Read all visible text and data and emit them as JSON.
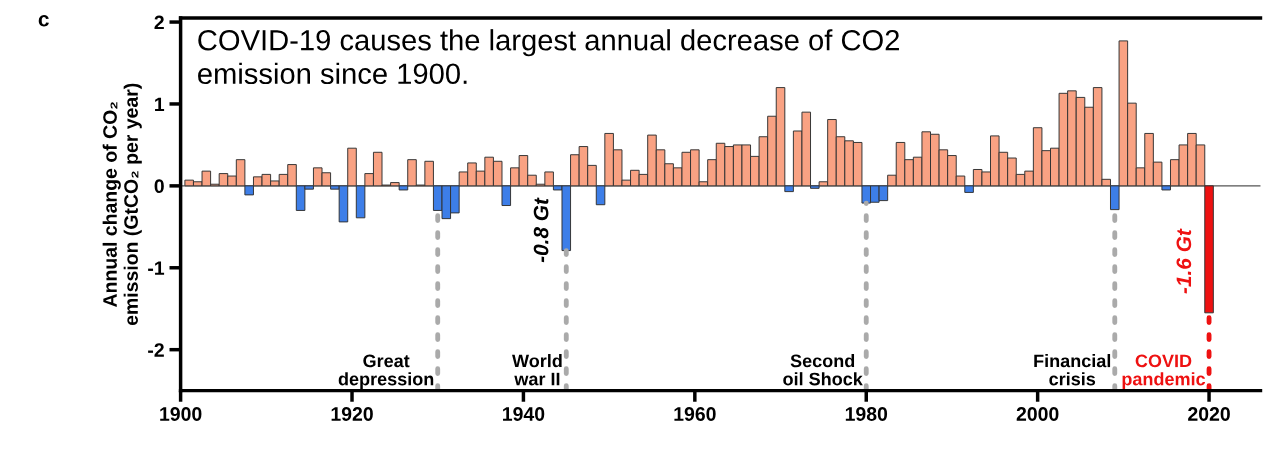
{
  "chart_data": {
    "type": "bar",
    "ylabel": "Annual change of CO₂\nemission (GtCO₂ per year)",
    "annotations": [
      "c",
      "COVID-19 causes the largest annual decrease of CO2\nemission since 1900.",
      {
        "text": "-0.8 Gt",
        "x": 1945,
        "y": -0.79
      },
      {
        "text": "-1.6 Gt",
        "x": 2020,
        "y": -1.55
      }
    ],
    "x": [
      1901,
      1902,
      1903,
      1904,
      1905,
      1906,
      1907,
      1908,
      1909,
      1910,
      1911,
      1912,
      1913,
      1914,
      1915,
      1916,
      1917,
      1918,
      1919,
      1920,
      1921,
      1922,
      1923,
      1924,
      1925,
      1926,
      1927,
      1928,
      1929,
      1930,
      1931,
      1932,
      1933,
      1934,
      1935,
      1936,
      1937,
      1938,
      1939,
      1940,
      1941,
      1942,
      1943,
      1944,
      1945,
      1946,
      1947,
      1948,
      1949,
      1950,
      1951,
      1952,
      1953,
      1954,
      1955,
      1956,
      1957,
      1958,
      1959,
      1960,
      1961,
      1962,
      1963,
      1964,
      1965,
      1966,
      1967,
      1968,
      1969,
      1970,
      1971,
      1972,
      1973,
      1974,
      1975,
      1976,
      1977,
      1978,
      1979,
      1980,
      1981,
      1982,
      1983,
      1984,
      1985,
      1986,
      1987,
      1988,
      1989,
      1990,
      1991,
      1992,
      1993,
      1994,
      1995,
      1996,
      1997,
      1998,
      1999,
      2000,
      2001,
      2002,
      2003,
      2004,
      2005,
      2006,
      2007,
      2008,
      2009,
      2010,
      2011,
      2012,
      2013,
      2014,
      2015,
      2016,
      2017,
      2018,
      2019,
      2020
    ],
    "values": [
      0.07,
      0.05,
      0.18,
      0.02,
      0.15,
      0.12,
      0.32,
      -0.11,
      0.11,
      0.14,
      0.06,
      0.14,
      0.26,
      -0.3,
      -0.04,
      0.22,
      0.16,
      -0.04,
      -0.44,
      0.46,
      -0.39,
      0.15,
      0.41,
      0.01,
      0.04,
      -0.05,
      0.32,
      0.01,
      0.3,
      -0.3,
      -0.4,
      -0.33,
      0.17,
      0.28,
      0.18,
      0.35,
      0.3,
      -0.24,
      0.22,
      0.37,
      0.13,
      0.02,
      0.17,
      -0.05,
      -0.79,
      0.38,
      0.48,
      0.25,
      -0.23,
      0.64,
      0.44,
      0.07,
      0.19,
      0.14,
      0.62,
      0.44,
      0.27,
      0.22,
      0.41,
      0.44,
      0.05,
      0.32,
      0.52,
      0.48,
      0.5,
      0.5,
      0.36,
      0.6,
      0.85,
      1.2,
      -0.07,
      0.67,
      0.9,
      -0.03,
      0.05,
      0.81,
      0.6,
      0.55,
      0.53,
      -0.21,
      -0.2,
      -0.18,
      0.13,
      0.53,
      0.32,
      0.35,
      0.66,
      0.63,
      0.44,
      0.37,
      0.12,
      -0.08,
      0.2,
      0.17,
      0.61,
      0.41,
      0.34,
      0.14,
      0.18,
      0.71,
      0.43,
      0.46,
      1.13,
      1.16,
      1.08,
      0.96,
      1.2,
      0.08,
      -0.29,
      1.77,
      1.01,
      0.22,
      0.64,
      0.29,
      -0.05,
      0.32,
      0.5,
      0.64,
      0.5,
      -1.55
    ],
    "colors": [
      "#f9a283",
      "#f9a283",
      "#f9a283",
      "#f9a283",
      "#f9a283",
      "#f9a283",
      "#f9a283",
      "#3d7ee8",
      "#f9a283",
      "#f9a283",
      "#f9a283",
      "#f9a283",
      "#f9a283",
      "#3d7ee8",
      "#3d7ee8",
      "#f9a283",
      "#f9a283",
      "#3d7ee8",
      "#3d7ee8",
      "#f9a283",
      "#3d7ee8",
      "#f9a283",
      "#f9a283",
      "#f9a283",
      "#f9a283",
      "#3d7ee8",
      "#f9a283",
      "#f9a283",
      "#f9a283",
      "#3d7ee8",
      "#3d7ee8",
      "#3d7ee8",
      "#f9a283",
      "#f9a283",
      "#f9a283",
      "#f9a283",
      "#f9a283",
      "#3d7ee8",
      "#f9a283",
      "#f9a283",
      "#f9a283",
      "#f9a283",
      "#f9a283",
      "#3d7ee8",
      "#3d7ee8",
      "#f9a283",
      "#f9a283",
      "#f9a283",
      "#3d7ee8",
      "#f9a283",
      "#f9a283",
      "#f9a283",
      "#f9a283",
      "#f9a283",
      "#f9a283",
      "#f9a283",
      "#f9a283",
      "#f9a283",
      "#f9a283",
      "#f9a283",
      "#f9a283",
      "#f9a283",
      "#f9a283",
      "#f9a283",
      "#f9a283",
      "#f9a283",
      "#f9a283",
      "#f9a283",
      "#f9a283",
      "#f9a283",
      "#3d7ee8",
      "#f9a283",
      "#f9a283",
      "#3d7ee8",
      "#f9a283",
      "#f9a283",
      "#f9a283",
      "#f9a283",
      "#f9a283",
      "#3d7ee8",
      "#3d7ee8",
      "#3d7ee8",
      "#f9a283",
      "#f9a283",
      "#f9a283",
      "#f9a283",
      "#f9a283",
      "#f9a283",
      "#f9a283",
      "#f9a283",
      "#f9a283",
      "#3d7ee8",
      "#f9a283",
      "#f9a283",
      "#f9a283",
      "#f9a283",
      "#f9a283",
      "#f9a283",
      "#f9a283",
      "#f9a283",
      "#f9a283",
      "#f9a283",
      "#f9a283",
      "#f9a283",
      "#f9a283",
      "#f9a283",
      "#f9a283",
      "#f9a283",
      "#3d7ee8",
      "#f9a283",
      "#f9a283",
      "#f9a283",
      "#f9a283",
      "#f9a283",
      "#3d7ee8",
      "#f9a283",
      "#f9a283",
      "#f9a283",
      "#f9a283",
      "#ee1111"
    ],
    "xlim": [
      1900,
      2026
    ],
    "xticks": [
      1900,
      1920,
      1940,
      1960,
      1980,
      2000,
      2020
    ],
    "ylim": [
      -2.5,
      2.05
    ],
    "yticks": [
      -2,
      -1,
      0,
      1,
      2
    ],
    "ref_lines": [
      {
        "axis": "y",
        "value": 0,
        "color": "#555555",
        "line_style": "solid"
      },
      {
        "axis": "x",
        "value": 1930,
        "label": "Great\ndepression",
        "color": "#aaaaaa",
        "line_style": "dotted"
      },
      {
        "axis": "x",
        "value": 1945,
        "label": "World\nwar II",
        "color": "#aaaaaa",
        "line_style": "dotted"
      },
      {
        "axis": "x",
        "value": 1980,
        "label": "Second\noil Shock",
        "color": "#aaaaaa",
        "line_style": "dotted"
      },
      {
        "axis": "x",
        "value": 2009,
        "label": "Financial\ncrisis",
        "color": "#aaaaaa",
        "line_style": "dotted"
      },
      {
        "axis": "x",
        "value": 2020,
        "label": "COVID\npandemic",
        "color": "#ee1111",
        "line_style": "dotted"
      }
    ],
    "grid": false,
    "legend": false
  }
}
